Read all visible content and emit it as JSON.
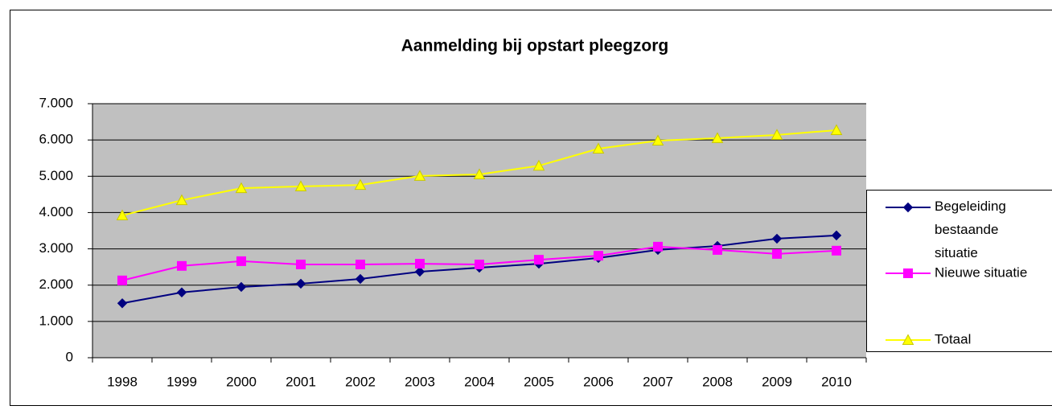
{
  "chart_data": {
    "type": "line",
    "title": "Aanmelding bij opstart pleegzorg",
    "categories": [
      "1998",
      "1999",
      "2000",
      "2001",
      "2002",
      "2003",
      "2004",
      "2005",
      "2006",
      "2007",
      "2008",
      "2009",
      "2010"
    ],
    "series": [
      {
        "name": "Begeleiding bestaande situatie",
        "color": "#000080",
        "marker": "diamond",
        "values": [
          1500,
          1800,
          1950,
          2040,
          2170,
          2370,
          2480,
          2590,
          2750,
          2970,
          3080,
          3280,
          3370
        ]
      },
      {
        "name": "Nieuwe situatie",
        "color": "#ff00ff",
        "marker": "square",
        "values": [
          2130,
          2530,
          2660,
          2570,
          2570,
          2590,
          2570,
          2700,
          2810,
          3060,
          2970,
          2860,
          2950
        ]
      },
      {
        "name": "Totaal",
        "color": "#ffff00",
        "marker": "triangle",
        "values": [
          3920,
          4340,
          4670,
          4720,
          4760,
          5010,
          5050,
          5290,
          5760,
          5980,
          6050,
          6140,
          6270
        ]
      }
    ],
    "ylim": [
      0,
      7000
    ],
    "yticks": [
      0,
      {
        "value": 1000,
        "label": "1.000"
      },
      {
        "value": 2000,
        "label": "2.000"
      },
      {
        "value": 3000,
        "label": "3.000"
      },
      {
        "value": 4000,
        "label": "4.000"
      },
      {
        "value": 5000,
        "label": "5.000"
      },
      {
        "value": 6000,
        "label": "6.000"
      },
      {
        "value": 7000,
        "label": "7.000"
      }
    ],
    "grid": true,
    "legend": "right"
  }
}
